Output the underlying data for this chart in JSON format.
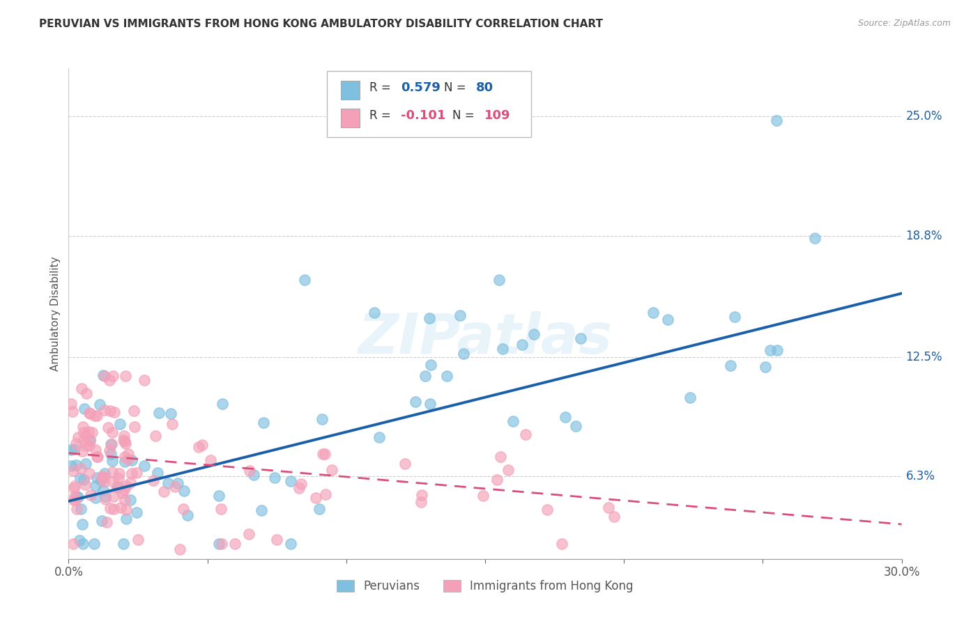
{
  "title": "PERUVIAN VS IMMIGRANTS FROM HONG KONG AMBULATORY DISABILITY CORRELATION CHART",
  "source": "Source: ZipAtlas.com",
  "ylabel": "Ambulatory Disability",
  "ytick_labels": [
    "6.3%",
    "12.5%",
    "18.8%",
    "25.0%"
  ],
  "ytick_values": [
    0.063,
    0.125,
    0.188,
    0.25
  ],
  "xmin": 0.0,
  "xmax": 0.3,
  "ymin": 0.02,
  "ymax": 0.275,
  "peruvian_color": "#7fbfdf",
  "hk_color": "#f4a0b8",
  "peruvian_line_color": "#1a5fa8",
  "hk_line_color": "#d94f7a",
  "legend_label_peruvian": "Peruvians",
  "legend_label_hk": "Immigrants from Hong Kong",
  "watermark": "ZIPatlas",
  "background_color": "#ffffff",
  "grid_color": "#cccccc",
  "peruvian_line_x": [
    0.0,
    0.3
  ],
  "peruvian_line_y": [
    0.05,
    0.158
  ],
  "hk_line_x": [
    0.0,
    0.3
  ],
  "hk_line_y": [
    0.075,
    0.038
  ],
  "scatter_marker_size": 120,
  "scatter_alpha": 0.65,
  "scatter_linewidth": 1.2
}
